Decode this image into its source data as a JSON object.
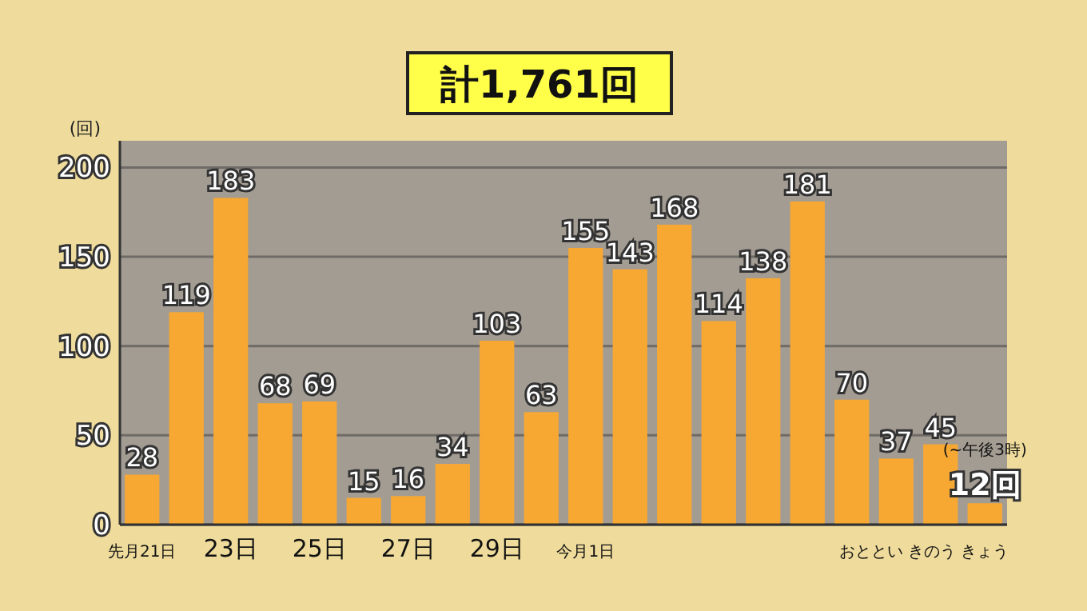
{
  "chart_data": {
    "type": "bar",
    "title": "計1,761回",
    "ylabel": "(回)",
    "categories": [
      "先月21日",
      null,
      "23日",
      null,
      "25日",
      null,
      "27日",
      null,
      "29日",
      null,
      "今月1日",
      null,
      null,
      null,
      null,
      null,
      null,
      "おととい",
      "きのう",
      "きょう"
    ],
    "values": [
      28,
      119,
      183,
      68,
      69,
      15,
      16,
      34,
      103,
      63,
      155,
      143,
      168,
      114,
      138,
      181,
      70,
      37,
      45,
      12
    ],
    "value_labels": [
      "28",
      "119",
      "183",
      "68",
      "69",
      "15",
      "16",
      "34",
      "103",
      "63",
      "155",
      "143",
      "168",
      "114",
      "138",
      "181",
      "70",
      "37",
      "45",
      "12回"
    ],
    "color": "#f7a833",
    "ylim": [
      0,
      215
    ],
    "yticks": [
      0,
      50,
      100,
      150,
      200
    ],
    "grid": "y",
    "annotations": [
      "(~午後3時)"
    ]
  }
}
